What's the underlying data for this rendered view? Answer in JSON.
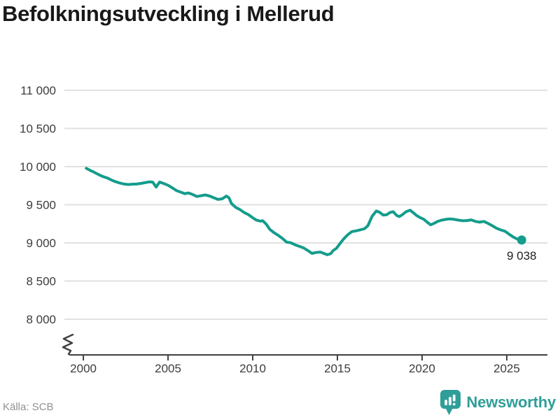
{
  "footer": {
    "source": "Källa: SCB",
    "brand_name": "Newsworthy"
  },
  "colors": {
    "line": "#149C8C",
    "grid": "#E1E1E1",
    "axis": "#404040",
    "tick_label": "#3C3C3C",
    "title": "#191919",
    "source_text": "#919191",
    "brand_teal": "#2F9E99",
    "annotation": "#1F1F1F",
    "background": "#FFFFFF"
  },
  "chart_data": {
    "type": "line",
    "title": "Befolkningsutveckling i Mellerud",
    "xlabel": "",
    "ylabel": "",
    "legend": "none",
    "grid": "horizontal",
    "y_axis_break": true,
    "xlim": [
      1998.88,
      2027.4
    ],
    "ylim": [
      8000,
      11000
    ],
    "x_ticks": [
      {
        "x": 2000,
        "label": "2000"
      },
      {
        "x": 2005,
        "label": "2005"
      },
      {
        "x": 2010,
        "label": "2010"
      },
      {
        "x": 2015,
        "label": "2015"
      },
      {
        "x": 2020,
        "label": "2020"
      },
      {
        "x": 2025,
        "label": "2025"
      }
    ],
    "y_ticks": [
      {
        "y": 11000,
        "label": "11 000"
      },
      {
        "y": 10500,
        "label": "10 500"
      },
      {
        "y": 10000,
        "label": "10 000"
      },
      {
        "y": 9500,
        "label": "9 500"
      },
      {
        "y": 9000,
        "label": "9 000"
      },
      {
        "y": 8500,
        "label": "8 500"
      },
      {
        "y": 8000,
        "label": "8 000"
      }
    ],
    "end_label": "9 038",
    "end_value": 9038,
    "series": [
      {
        "points": [
          [
            2000.17,
            9978
          ],
          [
            2000.4,
            9950
          ],
          [
            2000.6,
            9930
          ],
          [
            2000.9,
            9895
          ],
          [
            2001.15,
            9870
          ],
          [
            2001.4,
            9852
          ],
          [
            2001.65,
            9825
          ],
          [
            2001.9,
            9802
          ],
          [
            2002.15,
            9785
          ],
          [
            2002.4,
            9772
          ],
          [
            2002.65,
            9765
          ],
          [
            2002.9,
            9770
          ],
          [
            2003.15,
            9772
          ],
          [
            2003.4,
            9780
          ],
          [
            2003.65,
            9790
          ],
          [
            2003.9,
            9800
          ],
          [
            2004.1,
            9795
          ],
          [
            2004.3,
            9732
          ],
          [
            2004.5,
            9798
          ],
          [
            2004.75,
            9778
          ],
          [
            2005.0,
            9755
          ],
          [
            2005.25,
            9722
          ],
          [
            2005.5,
            9685
          ],
          [
            2005.75,
            9665
          ],
          [
            2006.0,
            9645
          ],
          [
            2006.2,
            9655
          ],
          [
            2006.45,
            9635
          ],
          [
            2006.7,
            9608
          ],
          [
            2006.95,
            9618
          ],
          [
            2007.2,
            9628
          ],
          [
            2007.45,
            9615
          ],
          [
            2007.7,
            9592
          ],
          [
            2007.95,
            9570
          ],
          [
            2008.2,
            9578
          ],
          [
            2008.45,
            9615
          ],
          [
            2008.6,
            9590
          ],
          [
            2008.75,
            9515
          ],
          [
            2009.0,
            9465
          ],
          [
            2009.25,
            9436
          ],
          [
            2009.5,
            9398
          ],
          [
            2009.75,
            9370
          ],
          [
            2010.0,
            9330
          ],
          [
            2010.2,
            9300
          ],
          [
            2010.45,
            9285
          ],
          [
            2010.6,
            9290
          ],
          [
            2010.8,
            9245
          ],
          [
            2011.0,
            9180
          ],
          [
            2011.25,
            9135
          ],
          [
            2011.5,
            9100
          ],
          [
            2011.75,
            9060
          ],
          [
            2012.0,
            9010
          ],
          [
            2012.25,
            9002
          ],
          [
            2012.5,
            8975
          ],
          [
            2012.75,
            8955
          ],
          [
            2013.0,
            8935
          ],
          [
            2013.25,
            8900
          ],
          [
            2013.5,
            8862
          ],
          [
            2013.75,
            8875
          ],
          [
            2014.0,
            8880
          ],
          [
            2014.2,
            8862
          ],
          [
            2014.4,
            8845
          ],
          [
            2014.6,
            8858
          ],
          [
            2014.75,
            8900
          ],
          [
            2014.95,
            8930
          ],
          [
            2015.15,
            8990
          ],
          [
            2015.35,
            9048
          ],
          [
            2015.6,
            9105
          ],
          [
            2015.85,
            9148
          ],
          [
            2016.1,
            9158
          ],
          [
            2016.35,
            9172
          ],
          [
            2016.6,
            9185
          ],
          [
            2016.8,
            9225
          ],
          [
            2017.05,
            9350
          ],
          [
            2017.3,
            9418
          ],
          [
            2017.5,
            9400
          ],
          [
            2017.7,
            9365
          ],
          [
            2017.9,
            9368
          ],
          [
            2018.1,
            9398
          ],
          [
            2018.3,
            9408
          ],
          [
            2018.5,
            9360
          ],
          [
            2018.65,
            9345
          ],
          [
            2018.85,
            9372
          ],
          [
            2019.05,
            9408
          ],
          [
            2019.3,
            9428
          ],
          [
            2019.5,
            9392
          ],
          [
            2019.7,
            9355
          ],
          [
            2019.9,
            9330
          ],
          [
            2020.1,
            9310
          ],
          [
            2020.3,
            9272
          ],
          [
            2020.5,
            9238
          ],
          [
            2020.7,
            9255
          ],
          [
            2020.9,
            9280
          ],
          [
            2021.15,
            9298
          ],
          [
            2021.4,
            9308
          ],
          [
            2021.65,
            9315
          ],
          [
            2021.9,
            9308
          ],
          [
            2022.15,
            9298
          ],
          [
            2022.4,
            9290
          ],
          [
            2022.65,
            9293
          ],
          [
            2022.9,
            9302
          ],
          [
            2023.15,
            9282
          ],
          [
            2023.4,
            9272
          ],
          [
            2023.65,
            9282
          ],
          [
            2023.9,
            9255
          ],
          [
            2024.15,
            9225
          ],
          [
            2024.4,
            9192
          ],
          [
            2024.65,
            9170
          ],
          [
            2024.9,
            9152
          ],
          [
            2025.15,
            9112
          ],
          [
            2025.4,
            9075
          ],
          [
            2025.65,
            9048
          ],
          [
            2025.88,
            9038
          ]
        ]
      }
    ]
  }
}
